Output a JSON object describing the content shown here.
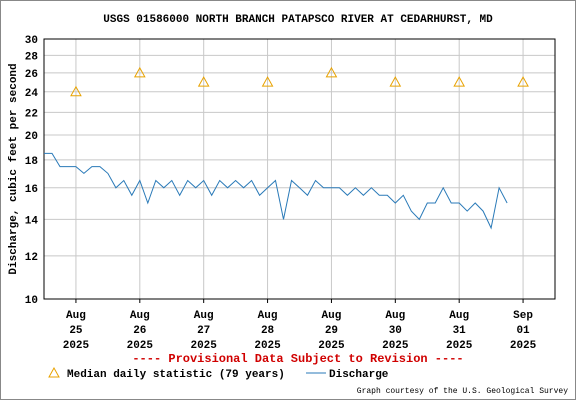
{
  "chart_data": {
    "type": "line",
    "title": "USGS 01586000 NORTH BRANCH PATAPSCO RIVER AT CEDARHURST, MD",
    "y_label": "Discharge, cubic feet per second",
    "annotation": "---- Provisional Data Subject to Revision ----",
    "credit": "Graph courtesy of the U.S. Geological Survey",
    "y_scale": "log",
    "grid": true,
    "ylim": [
      10,
      30
    ],
    "yticks": [
      10,
      12,
      14,
      16,
      18,
      20,
      22,
      24,
      26,
      28,
      30
    ],
    "xlim": [
      "2025-08-24T12:00",
      "2025-09-01T12:00"
    ],
    "xticks": [
      {
        "value": "2025-08-25T00:00",
        "label": [
          "Aug",
          "25",
          "2025"
        ]
      },
      {
        "value": "2025-08-26T00:00",
        "label": [
          "Aug",
          "26",
          "2025"
        ]
      },
      {
        "value": "2025-08-27T00:00",
        "label": [
          "Aug",
          "27",
          "2025"
        ]
      },
      {
        "value": "2025-08-28T00:00",
        "label": [
          "Aug",
          "28",
          "2025"
        ]
      },
      {
        "value": "2025-08-29T00:00",
        "label": [
          "Aug",
          "29",
          "2025"
        ]
      },
      {
        "value": "2025-08-30T00:00",
        "label": [
          "Aug",
          "30",
          "2025"
        ]
      },
      {
        "value": "2025-08-31T00:00",
        "label": [
          "Aug",
          "31",
          "2025"
        ]
      },
      {
        "value": "2025-09-01T00:00",
        "label": [
          "Sep",
          "01",
          "2025"
        ]
      }
    ],
    "series": [
      {
        "name": "Median daily statistic (79 years)",
        "color": "#e8a200",
        "marker": "triangle",
        "x": [
          "2025-08-25T00:00",
          "2025-08-26T00:00",
          "2025-08-27T00:00",
          "2025-08-28T00:00",
          "2025-08-29T00:00",
          "2025-08-30T00:00",
          "2025-08-31T00:00",
          "2025-09-01T00:00"
        ],
        "values": [
          24,
          26,
          25,
          25,
          26,
          25,
          25,
          25
        ]
      },
      {
        "name": "Discharge",
        "color": "#2a7ab8",
        "marker": "line",
        "x": [
          "2025-08-24T12:00",
          "2025-08-24T15:00",
          "2025-08-24T18:00",
          "2025-08-24T21:00",
          "2025-08-25T00:00",
          "2025-08-25T03:00",
          "2025-08-25T06:00",
          "2025-08-25T09:00",
          "2025-08-25T12:00",
          "2025-08-25T15:00",
          "2025-08-25T18:00",
          "2025-08-25T21:00",
          "2025-08-26T00:00",
          "2025-08-26T03:00",
          "2025-08-26T06:00",
          "2025-08-26T09:00",
          "2025-08-26T12:00",
          "2025-08-26T15:00",
          "2025-08-26T18:00",
          "2025-08-26T21:00",
          "2025-08-27T00:00",
          "2025-08-27T03:00",
          "2025-08-27T06:00",
          "2025-08-27T09:00",
          "2025-08-27T12:00",
          "2025-08-27T15:00",
          "2025-08-27T18:00",
          "2025-08-27T21:00",
          "2025-08-28T00:00",
          "2025-08-28T03:00",
          "2025-08-28T06:00",
          "2025-08-28T09:00",
          "2025-08-28T12:00",
          "2025-08-28T15:00",
          "2025-08-28T18:00",
          "2025-08-28T21:00",
          "2025-08-29T00:00",
          "2025-08-29T03:00",
          "2025-08-29T06:00",
          "2025-08-29T09:00",
          "2025-08-29T12:00",
          "2025-08-29T15:00",
          "2025-08-29T18:00",
          "2025-08-29T21:00",
          "2025-08-30T00:00",
          "2025-08-30T03:00",
          "2025-08-30T06:00",
          "2025-08-30T09:00",
          "2025-08-30T12:00",
          "2025-08-30T15:00",
          "2025-08-30T18:00",
          "2025-08-30T21:00",
          "2025-08-31T00:00",
          "2025-08-31T03:00",
          "2025-08-31T06:00",
          "2025-08-31T09:00",
          "2025-08-31T12:00",
          "2025-08-31T15:00",
          "2025-08-31T18:00"
        ],
        "values": [
          18.5,
          18.5,
          17.5,
          17.5,
          17.5,
          17.0,
          17.5,
          17.5,
          17.0,
          16.0,
          16.5,
          15.5,
          16.5,
          15.0,
          16.5,
          16.0,
          16.5,
          15.5,
          16.5,
          16.0,
          16.5,
          15.5,
          16.5,
          16.0,
          16.5,
          16.0,
          16.5,
          15.5,
          16.0,
          16.5,
          14.0,
          16.5,
          16.0,
          15.5,
          16.5,
          16.0,
          16.0,
          16.0,
          15.5,
          16.0,
          15.5,
          16.0,
          15.5,
          15.5,
          15.0,
          15.5,
          14.5,
          14.0,
          15.0,
          15.0,
          16.0,
          15.0,
          15.0,
          14.5,
          15.0,
          14.5,
          13.5,
          16.0,
          15.0
        ]
      }
    ]
  }
}
